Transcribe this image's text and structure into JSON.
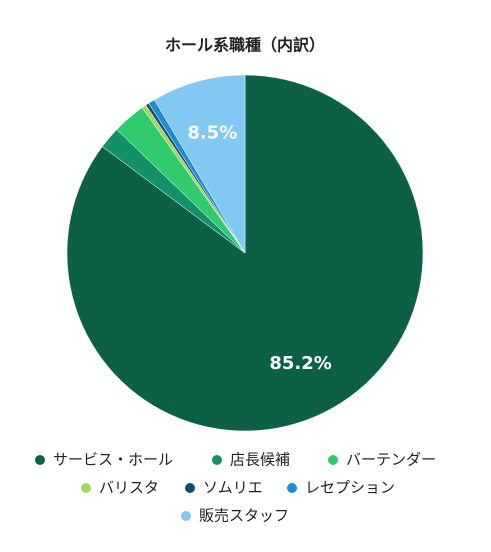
{
  "chart_data": {
    "type": "pie",
    "title": "ホール系職種（内訳）",
    "categories": [
      "サービス・ホール",
      "店長候補",
      "バーテンダー",
      "バリスタ",
      "ソムリエ",
      "レセプション",
      "販売スタッフ"
    ],
    "values": [
      85.2,
      2.0,
      3.0,
      0.4,
      0.3,
      0.6,
      8.5
    ],
    "value_labels": [
      "85.2%",
      null,
      null,
      null,
      null,
      null,
      "8.5%"
    ],
    "colors": [
      "#0b6046",
      "#129168",
      "#2fcb6d",
      "#a5d65b",
      "#144e6e",
      "#1f8ad8",
      "#83c8f2"
    ]
  }
}
